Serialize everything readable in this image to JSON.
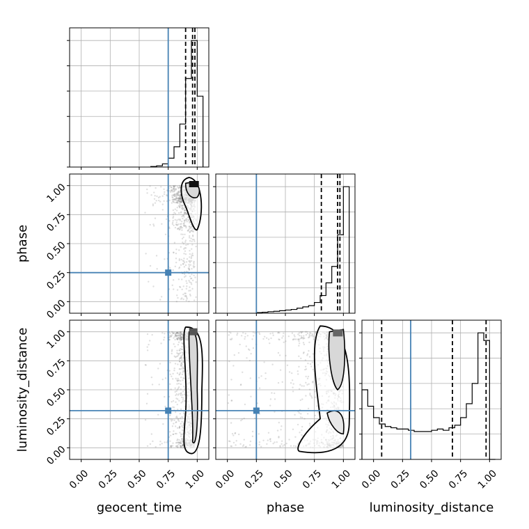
{
  "chart_data": {
    "type": "corner",
    "parameters": [
      "geocent_time",
      "phase",
      "luminosity_distance"
    ],
    "axis_range": [
      -0.1,
      1.1
    ],
    "tick_labels": [
      "0.00",
      "0.25",
      "0.50",
      "0.75",
      "1.00"
    ],
    "grid": true,
    "colors": {
      "truth": "#4682b4",
      "hist": "#000000",
      "scatter": "#808080",
      "grid": "#b0b0b0",
      "spine": "#000000"
    },
    "truths": {
      "geocent_time": 0.75,
      "phase": 0.25,
      "luminosity_distance": 0.32
    },
    "quantiles": {
      "geocent_time": [
        0.9,
        0.96,
        0.98
      ],
      "phase": [
        0.81,
        0.95,
        0.97
      ],
      "luminosity_distance": [
        0.07,
        0.68,
        0.97
      ]
    },
    "histograms": {
      "geocent_time": {
        "bins": [
          0.6,
          0.65,
          0.7,
          0.75,
          0.8,
          0.85,
          0.9,
          0.95,
          1.0,
          1.05
        ],
        "values": [
          0.004,
          0.01,
          0.025,
          0.07,
          0.16,
          0.34,
          0.7,
          1.0,
          0.56
        ],
        "ymax": 1.1
      },
      "phase": {
        "bins": [
          0.25,
          0.3,
          0.35,
          0.4,
          0.45,
          0.5,
          0.55,
          0.6,
          0.65,
          0.7,
          0.75,
          0.8,
          0.85,
          0.9,
          0.95,
          1.0,
          1.05
        ],
        "values": [
          0.005,
          0.008,
          0.012,
          0.015,
          0.02,
          0.025,
          0.03,
          0.04,
          0.05,
          0.06,
          0.085,
          0.14,
          0.24,
          0.37,
          0.62,
          1.0
        ],
        "ymax": 1.1
      },
      "luminosity_distance": {
        "bins": [
          -0.1,
          -0.05,
          0.0,
          0.05,
          0.1,
          0.15,
          0.2,
          0.25,
          0.3,
          0.35,
          0.4,
          0.45,
          0.5,
          0.55,
          0.6,
          0.65,
          0.7,
          0.75,
          0.8,
          0.85,
          0.9,
          0.95,
          1.0,
          1.05
        ],
        "values": [
          0.55,
          0.42,
          0.33,
          0.28,
          0.26,
          0.25,
          0.24,
          0.24,
          0.23,
          0.22,
          0.22,
          0.22,
          0.23,
          0.24,
          0.23,
          0.25,
          0.27,
          0.33,
          0.44,
          0.6,
          1.0,
          0.94,
          0.0
        ],
        "ymax": 1.1
      }
    }
  }
}
